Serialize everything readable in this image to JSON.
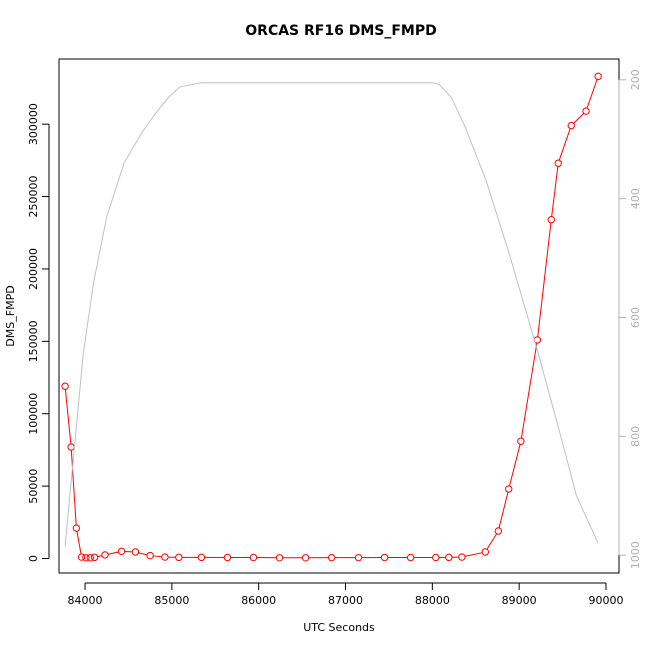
{
  "chart_data": {
    "type": "line",
    "title": "ORCAS RF16 DMS_FMPD",
    "xlabel": "UTC Seconds",
    "ylabel": "DMS_FMPD",
    "xlim": [
      83700,
      90150
    ],
    "ylim": [
      -10000,
      345000
    ],
    "y2lim": [
      1030,
      165
    ],
    "y2_inverted": true,
    "x_ticks": [
      84000,
      85000,
      86000,
      87000,
      88000,
      89000,
      90000
    ],
    "x_tick_labels": [
      "84000",
      "85000",
      "86000",
      "87000",
      "88000",
      "89000",
      "90000"
    ],
    "y_ticks": [
      0,
      50000,
      100000,
      150000,
      200000,
      250000,
      300000
    ],
    "y_tick_labels": [
      "0",
      "50000",
      "100000",
      "150000",
      "200000",
      "250000",
      "300000"
    ],
    "y2_ticks": [
      200,
      400,
      600,
      800,
      1000
    ],
    "y2_tick_labels": [
      "200",
      "400",
      "600",
      "800",
      "1000"
    ],
    "grid": false,
    "series": [
      {
        "role": "DMS_FMPD",
        "axis": "left",
        "color": "#ff0000",
        "marker": "open-circle",
        "x": [
          83770,
          83840,
          83900,
          83960,
          84010,
          84060,
          84110,
          84230,
          84420,
          84580,
          84750,
          84920,
          85080,
          85340,
          85640,
          85940,
          86240,
          86540,
          86840,
          87150,
          87450,
          87750,
          88040,
          88190,
          88340,
          88610,
          88760,
          88880,
          89020,
          89210,
          89370,
          89450,
          89600,
          89770,
          89910
        ],
        "y": [
          119000,
          77000,
          21000,
          1000,
          500,
          500,
          800,
          2500,
          5000,
          4500,
          2000,
          1000,
          800,
          800,
          700,
          700,
          500,
          500,
          600,
          600,
          700,
          700,
          700,
          800,
          1000,
          4500,
          19000,
          48000,
          81000,
          151000,
          234000,
          273000,
          299000,
          309000,
          333000
        ]
      },
      {
        "role": "pressure",
        "axis": "right",
        "color": "#c0c0c0",
        "marker": "none",
        "x": [
          83770,
          83870,
          83980,
          84100,
          84250,
          84450,
          84650,
          84820,
          84960,
          85090,
          85340,
          85700,
          86000,
          86500,
          87000,
          87500,
          88000,
          88080,
          88220,
          88380,
          88620,
          88880,
          89200,
          89480,
          89660,
          89910
        ],
        "y": [
          985,
          830,
          660,
          540,
          430,
          340,
          290,
          255,
          230,
          212,
          205,
          205,
          205,
          205,
          205,
          205,
          205,
          208,
          230,
          280,
          370,
          490,
          650,
          800,
          900,
          980
        ]
      }
    ]
  }
}
